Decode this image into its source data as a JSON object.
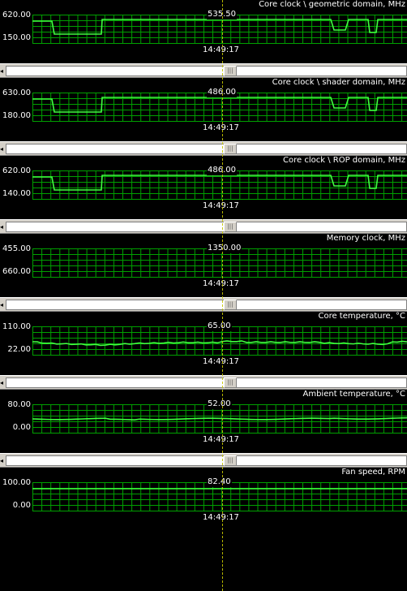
{
  "thumb_glyph": "|||",
  "arrow_glyph": "◂",
  "panels": [
    {
      "title": "Core clock \\ geometric domain, MHz",
      "ymax": "620.00",
      "ymin": "150.00",
      "current": "535.50",
      "time": "14:49:17",
      "trace": "clock"
    },
    {
      "title": "Core clock \\ shader domain, MHz",
      "ymax": "630.00",
      "ymin": "180.00",
      "current": "486.00",
      "time": "14:49:17",
      "trace": "clock"
    },
    {
      "title": "Core clock \\ ROP domain, MHz",
      "ymax": "620.00",
      "ymin": "140.00",
      "current": "486.00",
      "time": "14:49:17",
      "trace": "clock"
    },
    {
      "title": "Memory clock, MHz",
      "ymax": "455.00",
      "ymin": "660.00",
      "current": "1350.00",
      "time": "14:49:17",
      "trace": "none"
    },
    {
      "title": "Core temperature, °C",
      "ymax": "110.00",
      "ymin": "22.00",
      "current": "65.00",
      "time": "14:49:17",
      "trace": "temp1"
    },
    {
      "title": "Ambient temperature, °C",
      "ymax": "80.00",
      "ymin": "0.00",
      "current": "52.00",
      "time": "14:49:17",
      "trace": "temp2"
    },
    {
      "title": "Fan speed, RPM",
      "ymax": "100.00",
      "ymin": "0.00",
      "current": "82.40",
      "time": "14:49:17",
      "trace": "fan"
    }
  ]
}
